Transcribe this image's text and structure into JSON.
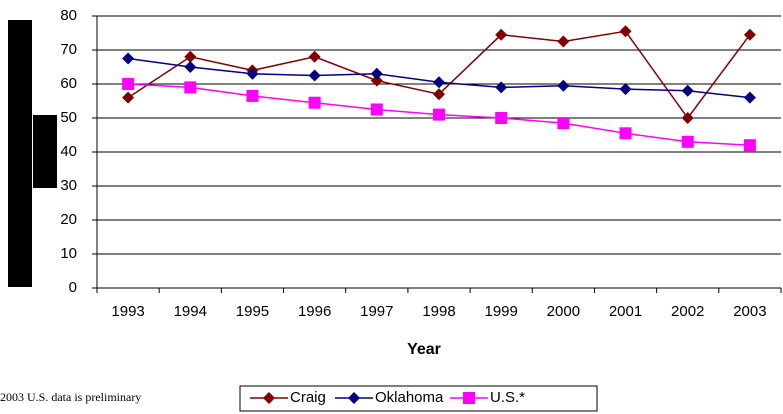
{
  "chart_data": {
    "type": "line",
    "x_label": "Year",
    "note": "2003 U.S. data is preliminary",
    "categories": [
      "1993",
      "1994",
      "1995",
      "1996",
      "1997",
      "1998",
      "1999",
      "2000",
      "2001",
      "2002",
      "2003"
    ],
    "series": [
      {
        "name": "Craig",
        "color": "#800000",
        "marker": "diamond",
        "values": [
          56,
          68,
          64,
          68,
          61,
          57,
          74.5,
          72.5,
          75.5,
          50,
          74.5
        ]
      },
      {
        "name": "Oklahoma",
        "color": "#000080",
        "marker": "diamond",
        "values": [
          67.5,
          65,
          63,
          62.5,
          63,
          60.5,
          59,
          59.5,
          58.5,
          58,
          56
        ]
      },
      {
        "name": "U.S.*",
        "color": "#ff00ff",
        "marker": "square",
        "values": [
          60,
          59,
          56.5,
          54.5,
          52.5,
          51,
          50,
          48.5,
          45.5,
          43,
          42
        ]
      }
    ],
    "ylim": [
      0,
      80
    ],
    "yticks": [
      0,
      10,
      20,
      30,
      40,
      50,
      60,
      70,
      80
    ],
    "grid": true
  }
}
